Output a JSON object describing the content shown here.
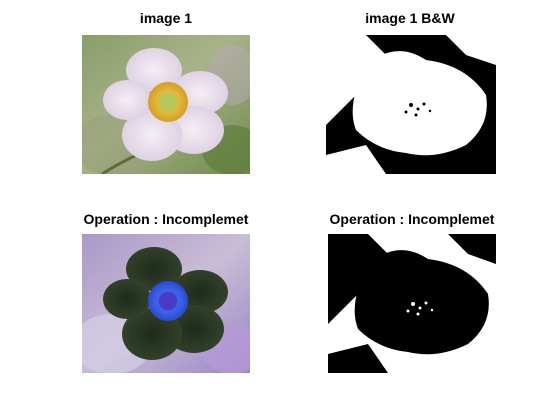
{
  "figure": {
    "panels": [
      {
        "title": "image 1",
        "content": "color flower photo"
      },
      {
        "title": "image 1 B&W",
        "content": "binary thresholded flower"
      },
      {
        "title": "Operation : Incomplemet",
        "content": "color-inverted flower photo"
      },
      {
        "title": "Operation : Incomplemet",
        "content": "inverted binary flower"
      }
    ]
  }
}
